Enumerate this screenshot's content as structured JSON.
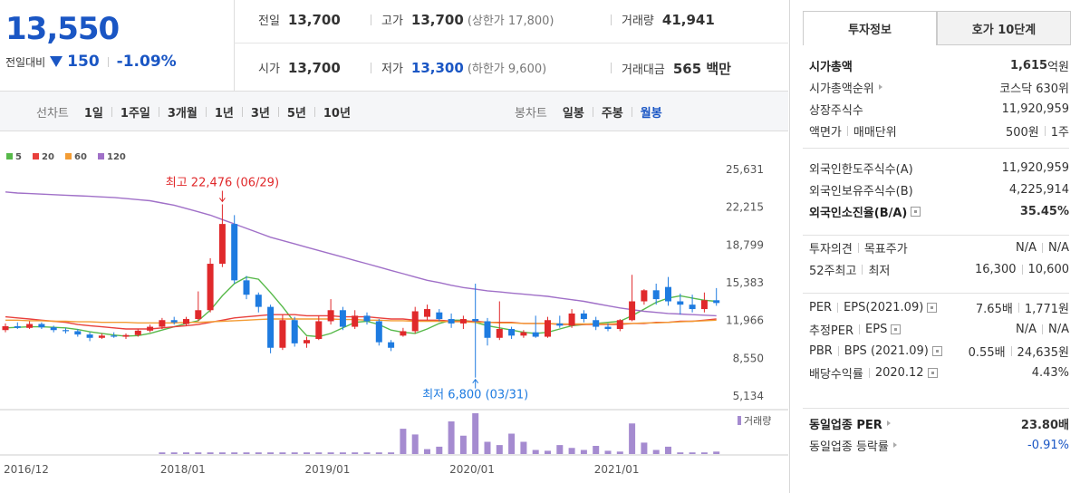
{
  "header": {
    "price": "13,550",
    "change_label": "전일대비",
    "change": "150",
    "change_rate": "-1.09%"
  },
  "stats": [
    [
      {
        "label": "전일",
        "value": "13,700"
      },
      {
        "label": "고가",
        "value": "13,700",
        "note": "(상한가 17,800)"
      },
      {
        "label": "거래량",
        "value": "41,941"
      }
    ],
    [
      {
        "label": "시가",
        "value": "13,700"
      },
      {
        "label": "저가",
        "value": "13,300",
        "note": "(하한가 9,600)",
        "color": "#1a56c4"
      },
      {
        "label": "거래대금",
        "value": "565 백만"
      }
    ]
  ],
  "periods": {
    "line_label": "선차트",
    "line_options": [
      "1일",
      "1주일",
      "3개월",
      "1년",
      "3년",
      "5년",
      "10년"
    ],
    "candle_label": "봉차트",
    "candle_options": [
      "일봉",
      "주봉",
      "월봉"
    ],
    "active": 2
  },
  "tabs": {
    "items": [
      "투자정보",
      "호가 10단계"
    ],
    "active": 0
  },
  "info": [
    [
      {
        "label": [
          "시가총액"
        ],
        "value": [
          "1,615"
        ],
        "unit": "억원",
        "bold": true
      },
      {
        "label": [
          "시가총액순위"
        ],
        "arrow": true,
        "value": [
          "코스닥 630위"
        ]
      },
      {
        "label": [
          "상장주식수"
        ],
        "value": [
          "11,920,959"
        ]
      },
      {
        "label": [
          "액면가",
          "매매단위"
        ],
        "value": [
          "500원",
          "1주"
        ]
      }
    ],
    [
      {
        "label": [
          "외국인한도주식수(A)"
        ],
        "value": [
          "11,920,959"
        ]
      },
      {
        "label": [
          "외국인보유주식수(B)"
        ],
        "value": [
          "4,225,914"
        ]
      },
      {
        "label": [
          "외국인소진율(B/A)"
        ],
        "help": true,
        "value": [
          "35.45%"
        ],
        "bold": true
      }
    ],
    [
      {
        "label": [
          "투자의견",
          "목표주가"
        ],
        "value": [
          "N/A",
          "N/A"
        ]
      },
      {
        "label": [
          "52주최고",
          "최저"
        ],
        "value": [
          "16,300",
          "10,600"
        ]
      }
    ],
    [
      {
        "label": [
          "PER",
          "EPS(2021.09)"
        ],
        "help": true,
        "value": [
          "7.65배",
          "1,771원"
        ]
      },
      {
        "label": [
          "추정PER",
          "EPS"
        ],
        "help": true,
        "value": [
          "N/A",
          "N/A"
        ]
      },
      {
        "label": [
          "PBR",
          "BPS (2021.09)"
        ],
        "help": true,
        "value": [
          "0.55배",
          "24,635원"
        ]
      },
      {
        "label": [
          "배당수익률",
          "2020.12"
        ],
        "help": true,
        "value": [
          "4.43%"
        ]
      }
    ],
    [
      {
        "label": [
          "동일업종 PER"
        ],
        "arrow": true,
        "value": [
          "23.80배"
        ],
        "bold": true
      },
      {
        "label": [
          "동일업종 등락률"
        ],
        "arrow": true,
        "value": [
          "-0.91%"
        ],
        "color": "#1a56c4"
      }
    ]
  ],
  "chart_data": {
    "type": "candlestick",
    "categories": [
      "2016/12",
      null,
      null,
      null,
      null,
      null,
      null,
      null,
      null,
      null,
      null,
      null,
      null,
      "2018/01",
      null,
      null,
      null,
      null,
      null,
      null,
      null,
      null,
      null,
      null,
      null,
      "2019/01",
      null,
      null,
      null,
      null,
      null,
      null,
      null,
      null,
      null,
      null,
      null,
      "2020/01",
      null,
      null,
      null,
      null,
      null,
      null,
      null,
      null,
      null,
      null,
      null,
      "2021/01",
      null,
      null,
      null,
      null,
      null,
      null,
      null,
      null,
      null,
      null
    ],
    "open": [
      11100,
      11450,
      11300,
      11650,
      11350,
      11100,
      11000,
      10700,
      10400,
      10600,
      10500,
      10650,
      11050,
      11400,
      12000,
      11650,
      12100,
      12900,
      17100,
      20700,
      15600,
      14300,
      13200,
      9500,
      12000,
      9900,
      10300,
      11900,
      12900,
      11400,
      12400,
      11900,
      10000,
      10600,
      11000,
      12300,
      12700,
      12100,
      11700,
      12100,
      11900,
      10400,
      11200,
      10600,
      10900,
      10500,
      11700,
      11500,
      12600,
      12000,
      11400,
      11200,
      12000,
      13700,
      14700,
      15000,
      13700,
      13400,
      13000,
      13800
    ],
    "high": [
      11700,
      11800,
      11900,
      11800,
      11500,
      11300,
      11200,
      10900,
      10800,
      10900,
      10800,
      11200,
      11600,
      12200,
      12300,
      12300,
      14600,
      17600,
      22476,
      21500,
      16000,
      14500,
      13400,
      12500,
      12300,
      10500,
      12400,
      13900,
      13200,
      12900,
      12700,
      12100,
      10200,
      11300,
      13200,
      13400,
      13000,
      12600,
      12400,
      15300,
      12200,
      13700,
      11400,
      11100,
      12400,
      12300,
      12400,
      13000,
      12900,
      12300,
      11700,
      12100,
      16100,
      14800,
      15300,
      15900,
      14400,
      14300,
      14500,
      14900
    ],
    "low": [
      10900,
      11200,
      11200,
      11200,
      10900,
      10800,
      10500,
      10100,
      10300,
      10400,
      10300,
      10500,
      10900,
      11200,
      11600,
      11500,
      11900,
      12700,
      16800,
      15300,
      13900,
      12700,
      9000,
      9300,
      9600,
      9500,
      10200,
      11600,
      11100,
      11200,
      11600,
      9700,
      9200,
      10500,
      10800,
      12000,
      11900,
      11300,
      11200,
      6800,
      9700,
      10200,
      10300,
      10400,
      10400,
      10400,
      11300,
      11300,
      11800,
      11100,
      11000,
      11000,
      11900,
      13400,
      13400,
      13300,
      12500,
      12700,
      12700,
      13300
    ],
    "close": [
      11450,
      11300,
      11650,
      11350,
      11100,
      11000,
      10700,
      10400,
      10600,
      10500,
      10650,
      11050,
      11400,
      12000,
      11800,
      12100,
      12900,
      17100,
      20700,
      15600,
      14300,
      13200,
      9500,
      12000,
      9900,
      10200,
      11900,
      12900,
      11400,
      12400,
      11900,
      10000,
      9500,
      11000,
      12800,
      13000,
      12100,
      11700,
      12100,
      11900,
      10400,
      11200,
      10600,
      10900,
      10500,
      12000,
      11500,
      12600,
      12100,
      11400,
      11200,
      12000,
      13700,
      14700,
      13900,
      13700,
      13400,
      13000,
      13800,
      13550
    ],
    "up_color": "#e0292b",
    "down_color": "#1e7be0",
    "ma": [
      {
        "name": "5",
        "color": "#57b94a",
        "values": [
          11300,
          11350,
          11400,
          11400,
          11350,
          11300,
          11150,
          10950,
          10800,
          10650,
          10550,
          10600,
          10800,
          11100,
          11400,
          11700,
          11950,
          12900,
          14200,
          15300,
          15900,
          15700,
          14500,
          13200,
          11800,
          10600,
          10500,
          10800,
          11300,
          11800,
          11900,
          11600,
          11100,
          10900,
          10800,
          11200,
          11700,
          12000,
          12000,
          11800,
          11500,
          11300,
          11100,
          10900,
          10800,
          10900,
          11200,
          11500,
          11600,
          11700,
          11800,
          11900,
          12400,
          13000,
          13600,
          14000,
          14200,
          14000,
          13800,
          13700
        ]
      },
      {
        "name": "20",
        "color": "#e8403c",
        "values": [
          12300,
          12200,
          12100,
          12000,
          11900,
          11800,
          11600,
          11500,
          11400,
          11300,
          11200,
          11200,
          11200,
          11300,
          11400,
          11500,
          11600,
          11800,
          12000,
          12200,
          12300,
          12400,
          12500,
          12500,
          12500,
          12400,
          12400,
          12400,
          12300,
          12300,
          12300,
          12200,
          12100,
          12100,
          12000,
          12000,
          12000,
          11900,
          11900,
          11900,
          11800,
          11800,
          11800,
          11700,
          11700,
          11700,
          11600,
          11600,
          11600,
          11600,
          11600,
          11600,
          11700,
          11700,
          11800,
          11800,
          11900,
          11900,
          12000,
          12100
        ]
      },
      {
        "name": "60",
        "color": "#f39c34",
        "values": [
          12000,
          12000,
          11950,
          11950,
          11900,
          11900,
          11850,
          11850,
          11800,
          11800,
          11800,
          11750,
          11750,
          11750,
          11750,
          11800,
          11800,
          11850,
          11900,
          11950,
          12000,
          12050,
          12100,
          12100,
          12100,
          12100,
          12100,
          12100,
          12050,
          12050,
          12000,
          12000,
          11950,
          11950,
          11900,
          11900,
          11900,
          11850,
          11850,
          11800,
          11800,
          11750,
          11750,
          11700,
          11700,
          11700,
          11650,
          11650,
          11650,
          11650,
          11650,
          11700,
          11700,
          11750,
          11750,
          11800,
          11850,
          11900,
          11950,
          12000
        ]
      },
      {
        "name": "120",
        "color": "#a070c8",
        "values": [
          23600,
          23500,
          23450,
          23400,
          23350,
          23300,
          23250,
          23200,
          23150,
          23100,
          23000,
          22900,
          22800,
          22600,
          22400,
          22100,
          21800,
          21500,
          21100,
          20700,
          20300,
          19900,
          19500,
          19200,
          18900,
          18600,
          18300,
          18000,
          17700,
          17400,
          17100,
          16800,
          16500,
          16200,
          15900,
          15600,
          15400,
          15150,
          14950,
          14800,
          14650,
          14550,
          14450,
          14350,
          14250,
          14150,
          14000,
          13850,
          13700,
          13500,
          13300,
          13100,
          12950,
          12800,
          12700,
          12600,
          12550,
          12500,
          12450,
          12400
        ]
      }
    ],
    "volume": [
      0,
      0,
      0,
      0,
      0,
      0,
      0,
      0,
      0,
      0,
      0,
      0,
      0,
      4,
      4,
      4,
      4,
      4,
      4,
      4,
      4,
      4,
      4,
      4,
      4,
      4,
      4,
      4,
      4,
      4,
      4,
      4,
      4,
      62,
      48,
      12,
      18,
      80,
      45,
      100,
      30,
      22,
      50,
      30,
      10,
      8,
      22,
      15,
      10,
      20,
      8,
      6,
      75,
      28,
      10,
      18,
      4,
      4,
      4,
      6
    ],
    "volume_label": "거래량",
    "volume_color": "#a58bd0",
    "volume_lim": [
      0,
      100
    ],
    "ylim": [
      4068,
      28664
    ],
    "yticks": [
      {
        "value": 25631,
        "label": "25,631"
      },
      {
        "value": 22215,
        "label": "22,215"
      },
      {
        "value": 18799,
        "label": "18,799"
      },
      {
        "value": 15383,
        "label": "15,383"
      },
      {
        "value": 11966,
        "label": "11,966"
      },
      {
        "value": 8550,
        "label": "8,550"
      },
      {
        "value": 5134,
        "label": "5,134"
      }
    ],
    "grid": false,
    "high_label": "최고 22,476 (06/29)",
    "low_label": "최저 6,800 (03/31)"
  }
}
